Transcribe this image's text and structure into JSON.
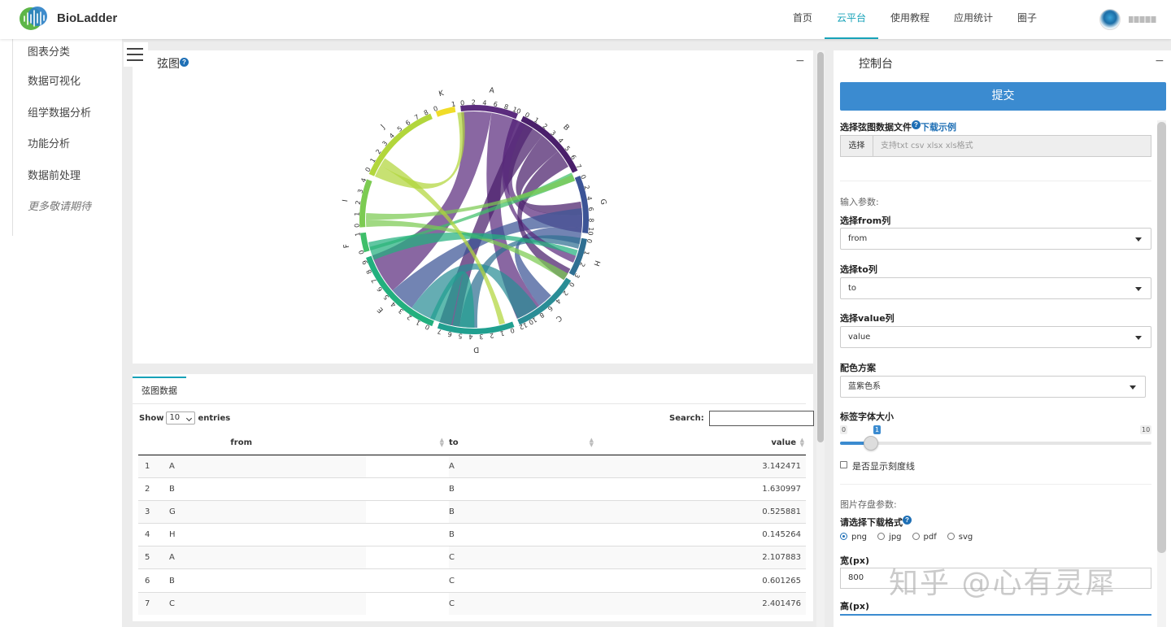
{
  "app": {
    "brand": "BioLadder"
  },
  "topnav": {
    "items": [
      {
        "label": "首页",
        "active": false
      },
      {
        "label": "云平台",
        "active": true
      },
      {
        "label": "使用教程",
        "active": false
      },
      {
        "label": "应用统计",
        "active": false
      },
      {
        "label": "圈子",
        "active": false
      }
    ]
  },
  "sidebar": {
    "items": [
      "图表分类",
      "数据可视化",
      "组学数据分析",
      "功能分析",
      "数据前处理",
      "更多敬请期待"
    ]
  },
  "chart_panel": {
    "title": "弦图",
    "help": "?",
    "collapse": "−"
  },
  "chart_data": {
    "type": "chord",
    "sectors": [
      {
        "name": "A",
        "ticks": [
          "0",
          "2",
          "4",
          "6",
          "8",
          "10"
        ],
        "color": "#5b2c7e"
      },
      {
        "name": "B",
        "ticks": [
          "0",
          "1",
          "2",
          "3",
          "4",
          "5",
          "6",
          "7"
        ],
        "color": "#4a1f6b"
      },
      {
        "name": "G",
        "ticks": [
          "0",
          "2",
          "4",
          "6",
          "8",
          "10"
        ],
        "color": "#3c5496"
      },
      {
        "name": "H",
        "ticks": [
          "0",
          "1",
          "2",
          "3"
        ],
        "color": "#2f6f92"
      },
      {
        "name": "C",
        "ticks": [
          "0",
          "2",
          "4",
          "6",
          "8",
          "10",
          "12"
        ],
        "color": "#2a8d96"
      },
      {
        "name": "D",
        "ticks": [
          "0",
          "1",
          "2",
          "3",
          "4",
          "5",
          "6",
          "7"
        ],
        "color": "#21a090"
      },
      {
        "name": "E",
        "ticks": [
          "0",
          "1",
          "2",
          "3",
          "4",
          "5",
          "6",
          "7",
          "8",
          "9"
        ],
        "color": "#22b07e"
      },
      {
        "name": "F",
        "ticks": [
          "0",
          "1"
        ],
        "color": "#3fbf6a"
      },
      {
        "name": "I",
        "ticks": [
          "0",
          "1",
          "2",
          "3",
          "4"
        ],
        "color": "#7ccb52"
      },
      {
        "name": "J",
        "ticks": [
          "0",
          "1",
          "2",
          "3",
          "4",
          "5",
          "6",
          "7",
          "8"
        ],
        "color": "#b2d63c"
      },
      {
        "name": "K",
        "ticks": [
          "0",
          "1"
        ],
        "color": "#f0dc28"
      }
    ]
  },
  "table_panel": {
    "tab": "弦图数据",
    "show_label": "Show",
    "entries_value": "10",
    "entries_label": "entries",
    "search_label": "Search:",
    "columns": [
      "from",
      "to",
      "value"
    ],
    "rows": [
      {
        "idx": "1",
        "from": "A",
        "to": "A",
        "value": "3.142471"
      },
      {
        "idx": "2",
        "from": "B",
        "to": "B",
        "value": "1.630997"
      },
      {
        "idx": "3",
        "from": "G",
        "to": "B",
        "value": "0.525881"
      },
      {
        "idx": "4",
        "from": "H",
        "to": "B",
        "value": "0.145264"
      },
      {
        "idx": "5",
        "from": "A",
        "to": "C",
        "value": "2.107883"
      },
      {
        "idx": "6",
        "from": "B",
        "to": "C",
        "value": "0.601265"
      },
      {
        "idx": "7",
        "from": "C",
        "to": "C",
        "value": "2.401476"
      }
    ]
  },
  "control": {
    "title": "控制台",
    "collapse": "−",
    "submit": "提交",
    "file_label": "选择弦图数据文件",
    "file_help": "?",
    "download_example": "下载示例",
    "file_button": "选择",
    "file_placeholder": "支持txt csv xlsx xls格式",
    "input_params": "输入参数:",
    "from_label": "选择from列",
    "from_value": "from",
    "to_label": "选择to列",
    "to_value": "to",
    "value_label": "选择value列",
    "value_value": "value",
    "color_label": "配色方案",
    "color_value": "蓝紫色系",
    "font_label": "标签字体大小",
    "slider_min": "0",
    "slider_value": "1",
    "slider_max": "10",
    "slider_fraction": 0.1,
    "scale_label": "是否显示刻度线",
    "save_params": "图片存盘参数:",
    "format_label": "请选择下载格式",
    "format_help": "?",
    "formats": [
      "png",
      "jpg",
      "pdf",
      "svg"
    ],
    "selected_format": "png",
    "width_label": "宽(px)",
    "width_value": "800",
    "height_label": "高(px)"
  },
  "watermark": "知乎 @心有灵犀"
}
